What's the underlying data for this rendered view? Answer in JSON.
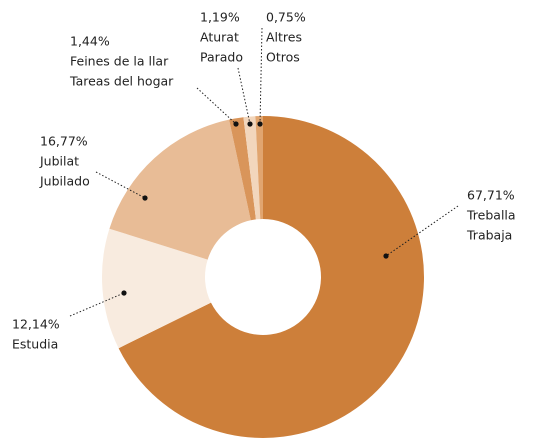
{
  "chart_data": {
    "type": "donut",
    "categories": [
      [
        "Treballa",
        "Trabaja"
      ],
      [
        "Estudia"
      ],
      [
        "Jubilat",
        "Jubilado"
      ],
      [
        "Feines de la llar",
        "Tareas del hogar"
      ],
      [
        "Aturat",
        "Parado"
      ],
      [
        "Altres",
        "Otros"
      ]
    ],
    "values": [
      67.71,
      12.14,
      16.77,
      1.44,
      1.19,
      0.75
    ],
    "value_labels": [
      "67,71%",
      "12,14%",
      "16,77%",
      "1,44%",
      "1,19%",
      "0,75%"
    ],
    "colors": [
      "#cd7f3a",
      "#f8ebdf",
      "#e8bc96",
      "#d9955a",
      "#f2d6bc",
      "#e1a56f"
    ]
  }
}
